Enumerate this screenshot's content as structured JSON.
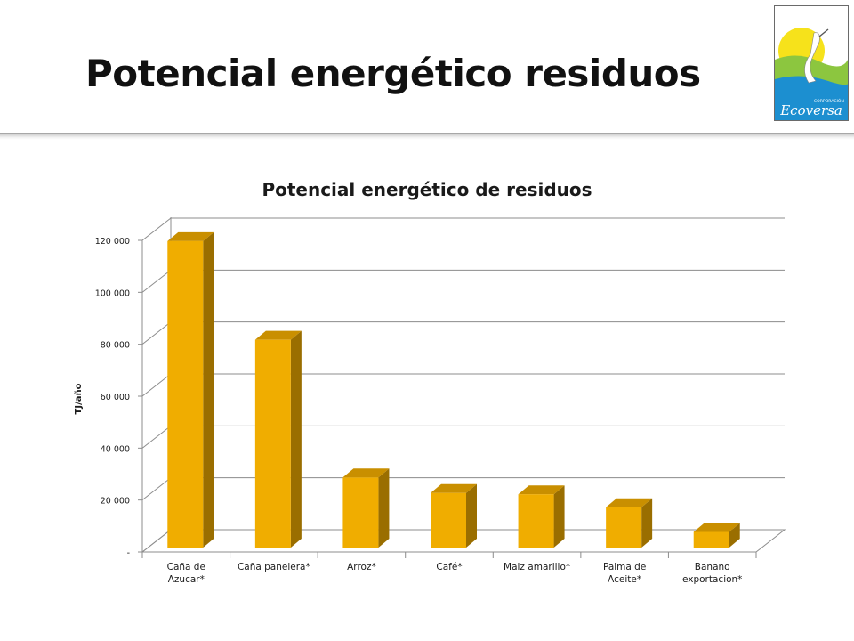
{
  "slide": {
    "title": "Potencial energético residuos"
  },
  "logo": {
    "small_text": "CORPORACIÓN",
    "brand": "Ecoversa"
  },
  "chart_data": {
    "type": "bar",
    "title": "Potencial energético de residuos",
    "ylabel": "TJ/año",
    "xlabel": "",
    "categories": [
      [
        "Caña de",
        "Azucar*"
      ],
      [
        "Caña panelera*"
      ],
      [
        "Arroz*"
      ],
      [
        "Café*"
      ],
      [
        "Maiz amarillo*"
      ],
      [
        "Palma de",
        "Aceite*"
      ],
      [
        "Banano",
        "exportacion*"
      ]
    ],
    "values": [
      118000,
      80000,
      27000,
      21000,
      20500,
      15500,
      6000
    ],
    "ylim": [
      0,
      120000
    ],
    "yticks": [
      0,
      20000,
      40000,
      60000,
      80000,
      100000,
      120000
    ],
    "ytick_labels": [
      "-",
      "20 000",
      "40 000",
      "60 000",
      "80 000",
      "100 000",
      "120 000"
    ],
    "style": "3d-column",
    "grid": true,
    "legend": "none",
    "colors": {
      "bar_front": "#f0ad00",
      "bar_side": "#9a6e00",
      "bar_top": "#c98f00",
      "grid": "#8c8c8c"
    }
  }
}
